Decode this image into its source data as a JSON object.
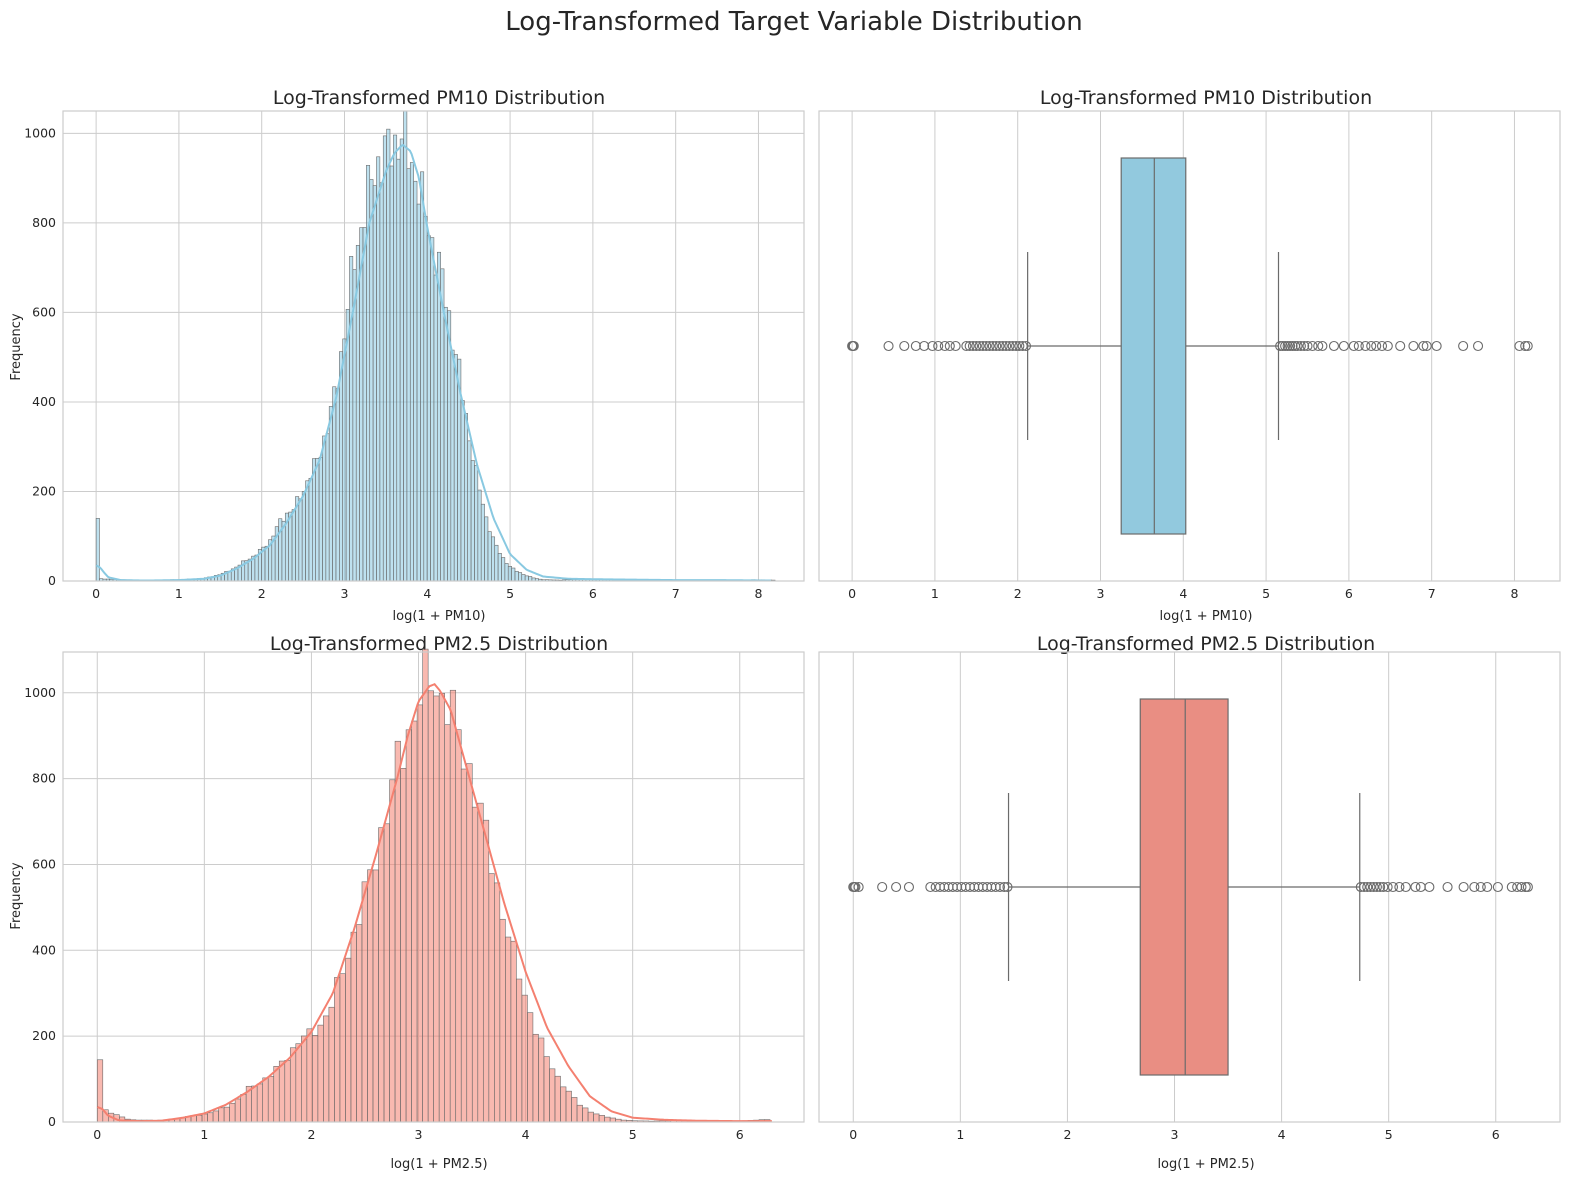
{
  "suptitle": "Log-Transformed Target Variable Distribution",
  "colors": {
    "pm10": "#89c9e1",
    "pm25": "#f48070",
    "pm10_box": "#92c9de",
    "pm25_box": "#e98e83",
    "edge": "#6b6b6b",
    "grid": "#cccccc"
  },
  "chart_data": [
    {
      "type": "bar",
      "title": "Log-Transformed PM10 Distribution",
      "xlabel": "log(1 + PM10)",
      "ylabel": "Frequency",
      "xlim": [
        -0.4,
        8.55
      ],
      "ylim": [
        0,
        1050
      ],
      "xticks": [
        0,
        1,
        2,
        3,
        4,
        5,
        6,
        7,
        8
      ],
      "yticks": [
        0,
        200,
        400,
        600,
        800,
        1000
      ],
      "grid": true,
      "color": "pm10",
      "kde": true,
      "histogram": {
        "bin_width": 0.0408,
        "x": [
          0,
          0.05,
          0.3,
          0.6,
          1.0,
          1.3,
          1.4,
          1.5,
          1.6,
          1.7,
          1.8,
          1.9,
          2.0,
          2.1,
          2.2,
          2.3,
          2.4,
          2.5,
          2.6,
          2.7,
          2.8,
          2.9,
          3.0,
          3.1,
          3.2,
          3.3,
          3.4,
          3.5,
          3.6,
          3.7,
          3.8,
          3.9,
          4.0,
          4.1,
          4.2,
          4.3,
          4.4,
          4.5,
          4.6,
          4.7,
          4.8,
          4.9,
          5.0,
          5.1,
          5.2,
          5.3,
          5.4,
          5.6,
          6.0,
          6.5,
          7.0,
          7.5,
          8.0,
          8.15
        ],
        "y": [
          140,
          5,
          3,
          2,
          3,
          6,
          10,
          15,
          22,
          32,
          45,
          55,
          70,
          90,
          125,
          150,
          165,
          200,
          245,
          280,
          350,
          430,
          560,
          700,
          790,
          880,
          930,
          960,
          975,
          995,
          940,
          880,
          800,
          730,
          660,
          550,
          450,
          330,
          230,
          150,
          90,
          55,
          32,
          20,
          12,
          6,
          3,
          2,
          5,
          3,
          2,
          1,
          3,
          2
        ]
      },
      "kde_curve": {
        "x": [
          0,
          0.05,
          0.1,
          0.15,
          0.3,
          0.6,
          1.0,
          1.3,
          1.5,
          1.7,
          1.9,
          2.1,
          2.3,
          2.5,
          2.7,
          2.9,
          3.1,
          3.3,
          3.5,
          3.6,
          3.7,
          3.8,
          3.9,
          4.0,
          4.2,
          4.4,
          4.6,
          4.8,
          5.0,
          5.2,
          5.4,
          5.7,
          6.0,
          6.5,
          7.0,
          7.5,
          8.15
        ],
        "y": [
          35,
          30,
          18,
          8,
          2,
          1,
          2,
          5,
          12,
          28,
          50,
          80,
          130,
          190,
          270,
          410,
          600,
          800,
          915,
          955,
          975,
          960,
          900,
          790,
          600,
          420,
          260,
          140,
          60,
          25,
          10,
          5,
          4,
          3,
          2,
          2,
          1
        ]
      }
    },
    {
      "type": "box",
      "title": "Log-Transformed PM10 Distribution",
      "xlabel": "log(1 + PM10)",
      "xlim": [
        -0.4,
        8.55
      ],
      "xticks": [
        0,
        1,
        2,
        3,
        4,
        5,
        6,
        7,
        8
      ],
      "grid": true,
      "color": "pm10_box",
      "whisker_low": 2.12,
      "q1": 3.25,
      "median": 3.65,
      "q3": 4.03,
      "whisker_high": 5.15,
      "outliers": [
        0,
        0.01,
        0.02,
        0.44,
        0.63,
        0.77,
        0.87,
        0.97,
        1.04,
        1.12,
        1.18,
        1.25,
        1.38,
        1.42,
        1.46,
        1.5,
        1.54,
        1.58,
        1.62,
        1.66,
        1.7,
        1.74,
        1.78,
        1.82,
        1.86,
        1.9,
        1.94,
        1.98,
        2.02,
        2.06,
        2.1,
        5.17,
        5.2,
        5.23,
        5.26,
        5.29,
        5.32,
        5.35,
        5.38,
        5.42,
        5.46,
        5.5,
        5.56,
        5.63,
        5.68,
        5.82,
        5.94,
        6.06,
        6.12,
        6.2,
        6.27,
        6.33,
        6.4,
        6.47,
        6.62,
        6.78,
        6.9,
        6.94,
        7.06,
        7.38,
        7.56,
        8.06,
        8.13,
        8.16
      ]
    },
    {
      "type": "bar",
      "title": "Log-Transformed PM2.5 Distribution",
      "xlabel": "log(1 + PM2.5)",
      "ylabel": "Frequency",
      "xlim": [
        -0.32,
        6.6
      ],
      "ylim": [
        0,
        1095
      ],
      "xticks": [
        0,
        1,
        2,
        3,
        4,
        5,
        6
      ],
      "yticks": [
        0,
        200,
        400,
        600,
        800,
        1000
      ],
      "grid": true,
      "color": "pm25",
      "kde": true,
      "histogram": {
        "bin_width": 0.0515,
        "x": [
          0,
          0.05,
          0.3,
          0.6,
          0.8,
          0.9,
          1.0,
          1.1,
          1.2,
          1.3,
          1.4,
          1.5,
          1.6,
          1.7,
          1.8,
          1.9,
          2.0,
          2.1,
          2.2,
          2.3,
          2.4,
          2.5,
          2.6,
          2.7,
          2.8,
          2.9,
          3.0,
          3.1,
          3.2,
          3.3,
          3.4,
          3.5,
          3.6,
          3.7,
          3.8,
          3.9,
          4.0,
          4.1,
          4.2,
          4.3,
          4.4,
          4.5,
          4.6,
          4.7,
          4.8,
          4.9,
          5.0,
          5.2,
          5.6,
          6.0,
          6.25
        ],
        "y": [
          145,
          30,
          5,
          4,
          10,
          15,
          18,
          25,
          35,
          50,
          75,
          90,
          105,
          130,
          160,
          195,
          205,
          230,
          280,
          360,
          440,
          530,
          620,
          720,
          830,
          900,
          985,
          1040,
          1000,
          960,
          880,
          800,
          700,
          590,
          470,
          380,
          290,
          210,
          150,
          105,
          70,
          42,
          25,
          15,
          10,
          5,
          3,
          2,
          4,
          2,
          6
        ]
      },
      "kde_curve": {
        "x": [
          0,
          0.05,
          0.1,
          0.2,
          0.4,
          0.6,
          0.8,
          1.0,
          1.2,
          1.4,
          1.6,
          1.8,
          2.0,
          2.2,
          2.4,
          2.6,
          2.8,
          2.9,
          3.0,
          3.1,
          3.15,
          3.2,
          3.3,
          3.4,
          3.6,
          3.8,
          4.0,
          4.2,
          4.4,
          4.6,
          4.8,
          5.0,
          5.3,
          5.6,
          6.0,
          6.3
        ],
        "y": [
          35,
          30,
          15,
          4,
          2,
          3,
          10,
          20,
          40,
          70,
          105,
          150,
          210,
          300,
          450,
          620,
          800,
          900,
          980,
          1015,
          1020,
          1005,
          960,
          870,
          690,
          510,
          350,
          220,
          130,
          60,
          25,
          10,
          5,
          3,
          2,
          2
        ]
      }
    },
    {
      "type": "box",
      "title": "Log-Transformed PM2.5 Distribution",
      "xlabel": "log(1 + PM2.5)",
      "xlim": [
        -0.32,
        6.6
      ],
      "xticks": [
        0,
        1,
        2,
        3,
        4,
        5,
        6
      ],
      "grid": true,
      "color": "pm25_box",
      "whisker_low": 1.45,
      "q1": 2.68,
      "median": 3.1,
      "q3": 3.5,
      "whisker_high": 4.73,
      "outliers": [
        0,
        0.01,
        0.02,
        0.05,
        0.27,
        0.4,
        0.52,
        0.72,
        0.77,
        0.81,
        0.85,
        0.89,
        0.93,
        0.97,
        1.01,
        1.05,
        1.09,
        1.13,
        1.17,
        1.21,
        1.25,
        1.29,
        1.33,
        1.37,
        1.41,
        1.44,
        4.74,
        4.77,
        4.8,
        4.83,
        4.86,
        4.89,
        4.92,
        4.95,
        4.99,
        5.04,
        5.1,
        5.16,
        5.25,
        5.3,
        5.38,
        5.55,
        5.7,
        5.8,
        5.86,
        5.92,
        6.02,
        6.15,
        6.2,
        6.24,
        6.28,
        6.3
      ]
    }
  ]
}
